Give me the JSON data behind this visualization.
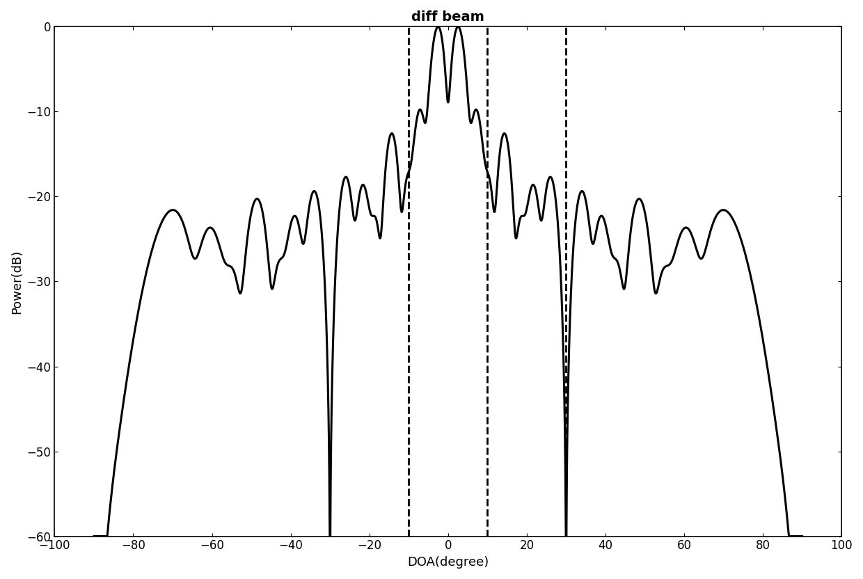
{
  "title": "diff beam",
  "xlabel": "DOA(degree)",
  "ylabel": "Power(dB)",
  "xlim": [
    -100,
    100
  ],
  "ylim": [
    -60,
    0
  ],
  "xticks": [
    -100,
    -80,
    -60,
    -40,
    -20,
    0,
    20,
    40,
    60,
    80,
    100
  ],
  "yticks": [
    0,
    -10,
    -20,
    -30,
    -40,
    -50,
    -60
  ],
  "dashed_lines": [
    -10,
    10,
    30
  ],
  "line_color": "#000000",
  "line_width": 2.2,
  "dashed_color": "#000000",
  "background_color": "#ffffff",
  "N1": 20,
  "N2": 12,
  "d_over_lambda": 0.5,
  "title_fontsize": 14,
  "label_fontsize": 13,
  "tick_fontsize": 12
}
